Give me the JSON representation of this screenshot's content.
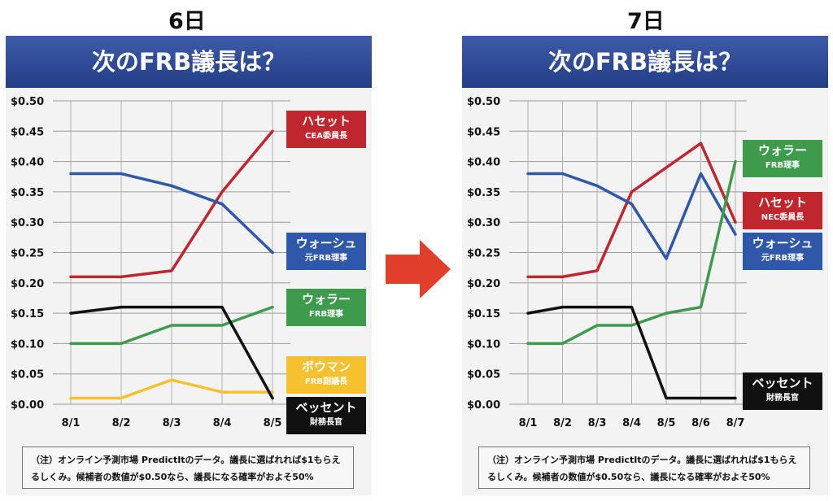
{
  "panels": [
    {
      "day_label": "6日",
      "title": "次のFRB議長は？",
      "note": "（注）オンライン予測市場 PredictItのデータ。議長に選ばれれば$1もらえるしくみ。候補者の数値が$0.50なら、議長になる確率がおよそ50%",
      "legend": [
        {
          "name": "ハセット",
          "role": "CEA委員長",
          "color": "#c0262d"
        },
        {
          "name": "ウォーシュ",
          "role": "元FRB理事",
          "color": "#2f58a8"
        },
        {
          "name": "ウォラー",
          "role": "FRB理事",
          "color": "#3f9b4c"
        },
        {
          "name": "ボウマン",
          "role": "FRB副議長",
          "color": "#f5c12f"
        },
        {
          "name": "ベッセント",
          "role": "財務長官",
          "color": "#111111"
        }
      ]
    },
    {
      "day_label": "7日",
      "title": "次のFRB議長は？",
      "note": "（注）オンライン予測市場 PredictItのデータ。議長に選ばれれば$1もらえるしくみ。候補者の数値が$0.50なら、議長になる確率がおよそ50%",
      "legend": [
        {
          "name": "ウォラー",
          "role": "FRB理事",
          "color": "#3f9b4c"
        },
        {
          "name": "ハセット",
          "role": "NEC委員長",
          "color": "#c0262d"
        },
        {
          "name": "ウォーシュ",
          "role": "元FRB理事",
          "color": "#2f58a8"
        },
        {
          "name": "ベッセント",
          "role": "財務長官",
          "color": "#111111"
        }
      ]
    }
  ],
  "chart_data": [
    {
      "type": "line",
      "categories": [
        "8/1",
        "8/2",
        "8/3",
        "8/4",
        "8/5"
      ],
      "y_ticks": [
        "$0.00",
        "$0.05",
        "$0.10",
        "$0.15",
        "$0.20",
        "$0.25",
        "$0.30",
        "$0.35",
        "$0.40",
        "$0.45",
        "$0.50"
      ],
      "ylim": [
        0,
        0.5
      ],
      "grid": true,
      "series": [
        {
          "name": "ハセット",
          "color": "#c0262d",
          "values": [
            0.21,
            0.21,
            0.22,
            0.35,
            0.45
          ]
        },
        {
          "name": "ウォーシュ",
          "color": "#2f58a8",
          "values": [
            0.38,
            0.38,
            0.36,
            0.33,
            0.25
          ]
        },
        {
          "name": "ウォラー",
          "color": "#3f9b4c",
          "values": [
            0.1,
            0.1,
            0.13,
            0.13,
            0.16
          ]
        },
        {
          "name": "ボウマン",
          "color": "#f5c12f",
          "values": [
            0.01,
            0.01,
            0.04,
            0.02,
            0.02
          ]
        },
        {
          "name": "ベッセント",
          "color": "#111111",
          "values": [
            0.15,
            0.16,
            0.16,
            0.16,
            0.01
          ]
        }
      ]
    },
    {
      "type": "line",
      "categories": [
        "8/1",
        "8/2",
        "8/3",
        "8/4",
        "8/5",
        "8/6",
        "8/7"
      ],
      "y_ticks": [
        "$0.00",
        "$0.05",
        "$0.10",
        "$0.15",
        "$0.20",
        "$0.25",
        "$0.30",
        "$0.35",
        "$0.40",
        "$0.45",
        "$0.50"
      ],
      "ylim": [
        0,
        0.5
      ],
      "grid": true,
      "series": [
        {
          "name": "ハセット",
          "color": "#c0262d",
          "values": [
            0.21,
            0.21,
            0.22,
            0.35,
            0.39,
            0.43,
            0.3
          ]
        },
        {
          "name": "ウォーシュ",
          "color": "#2f58a8",
          "values": [
            0.38,
            0.38,
            0.36,
            0.33,
            0.24,
            0.38,
            0.28
          ]
        },
        {
          "name": "ウォラー",
          "color": "#3f9b4c",
          "values": [
            0.1,
            0.1,
            0.13,
            0.13,
            0.15,
            0.16,
            0.4
          ]
        },
        {
          "name": "ベッセント",
          "color": "#111111",
          "values": [
            0.15,
            0.16,
            0.16,
            0.16,
            0.01,
            0.01,
            0.01
          ]
        }
      ]
    }
  ]
}
